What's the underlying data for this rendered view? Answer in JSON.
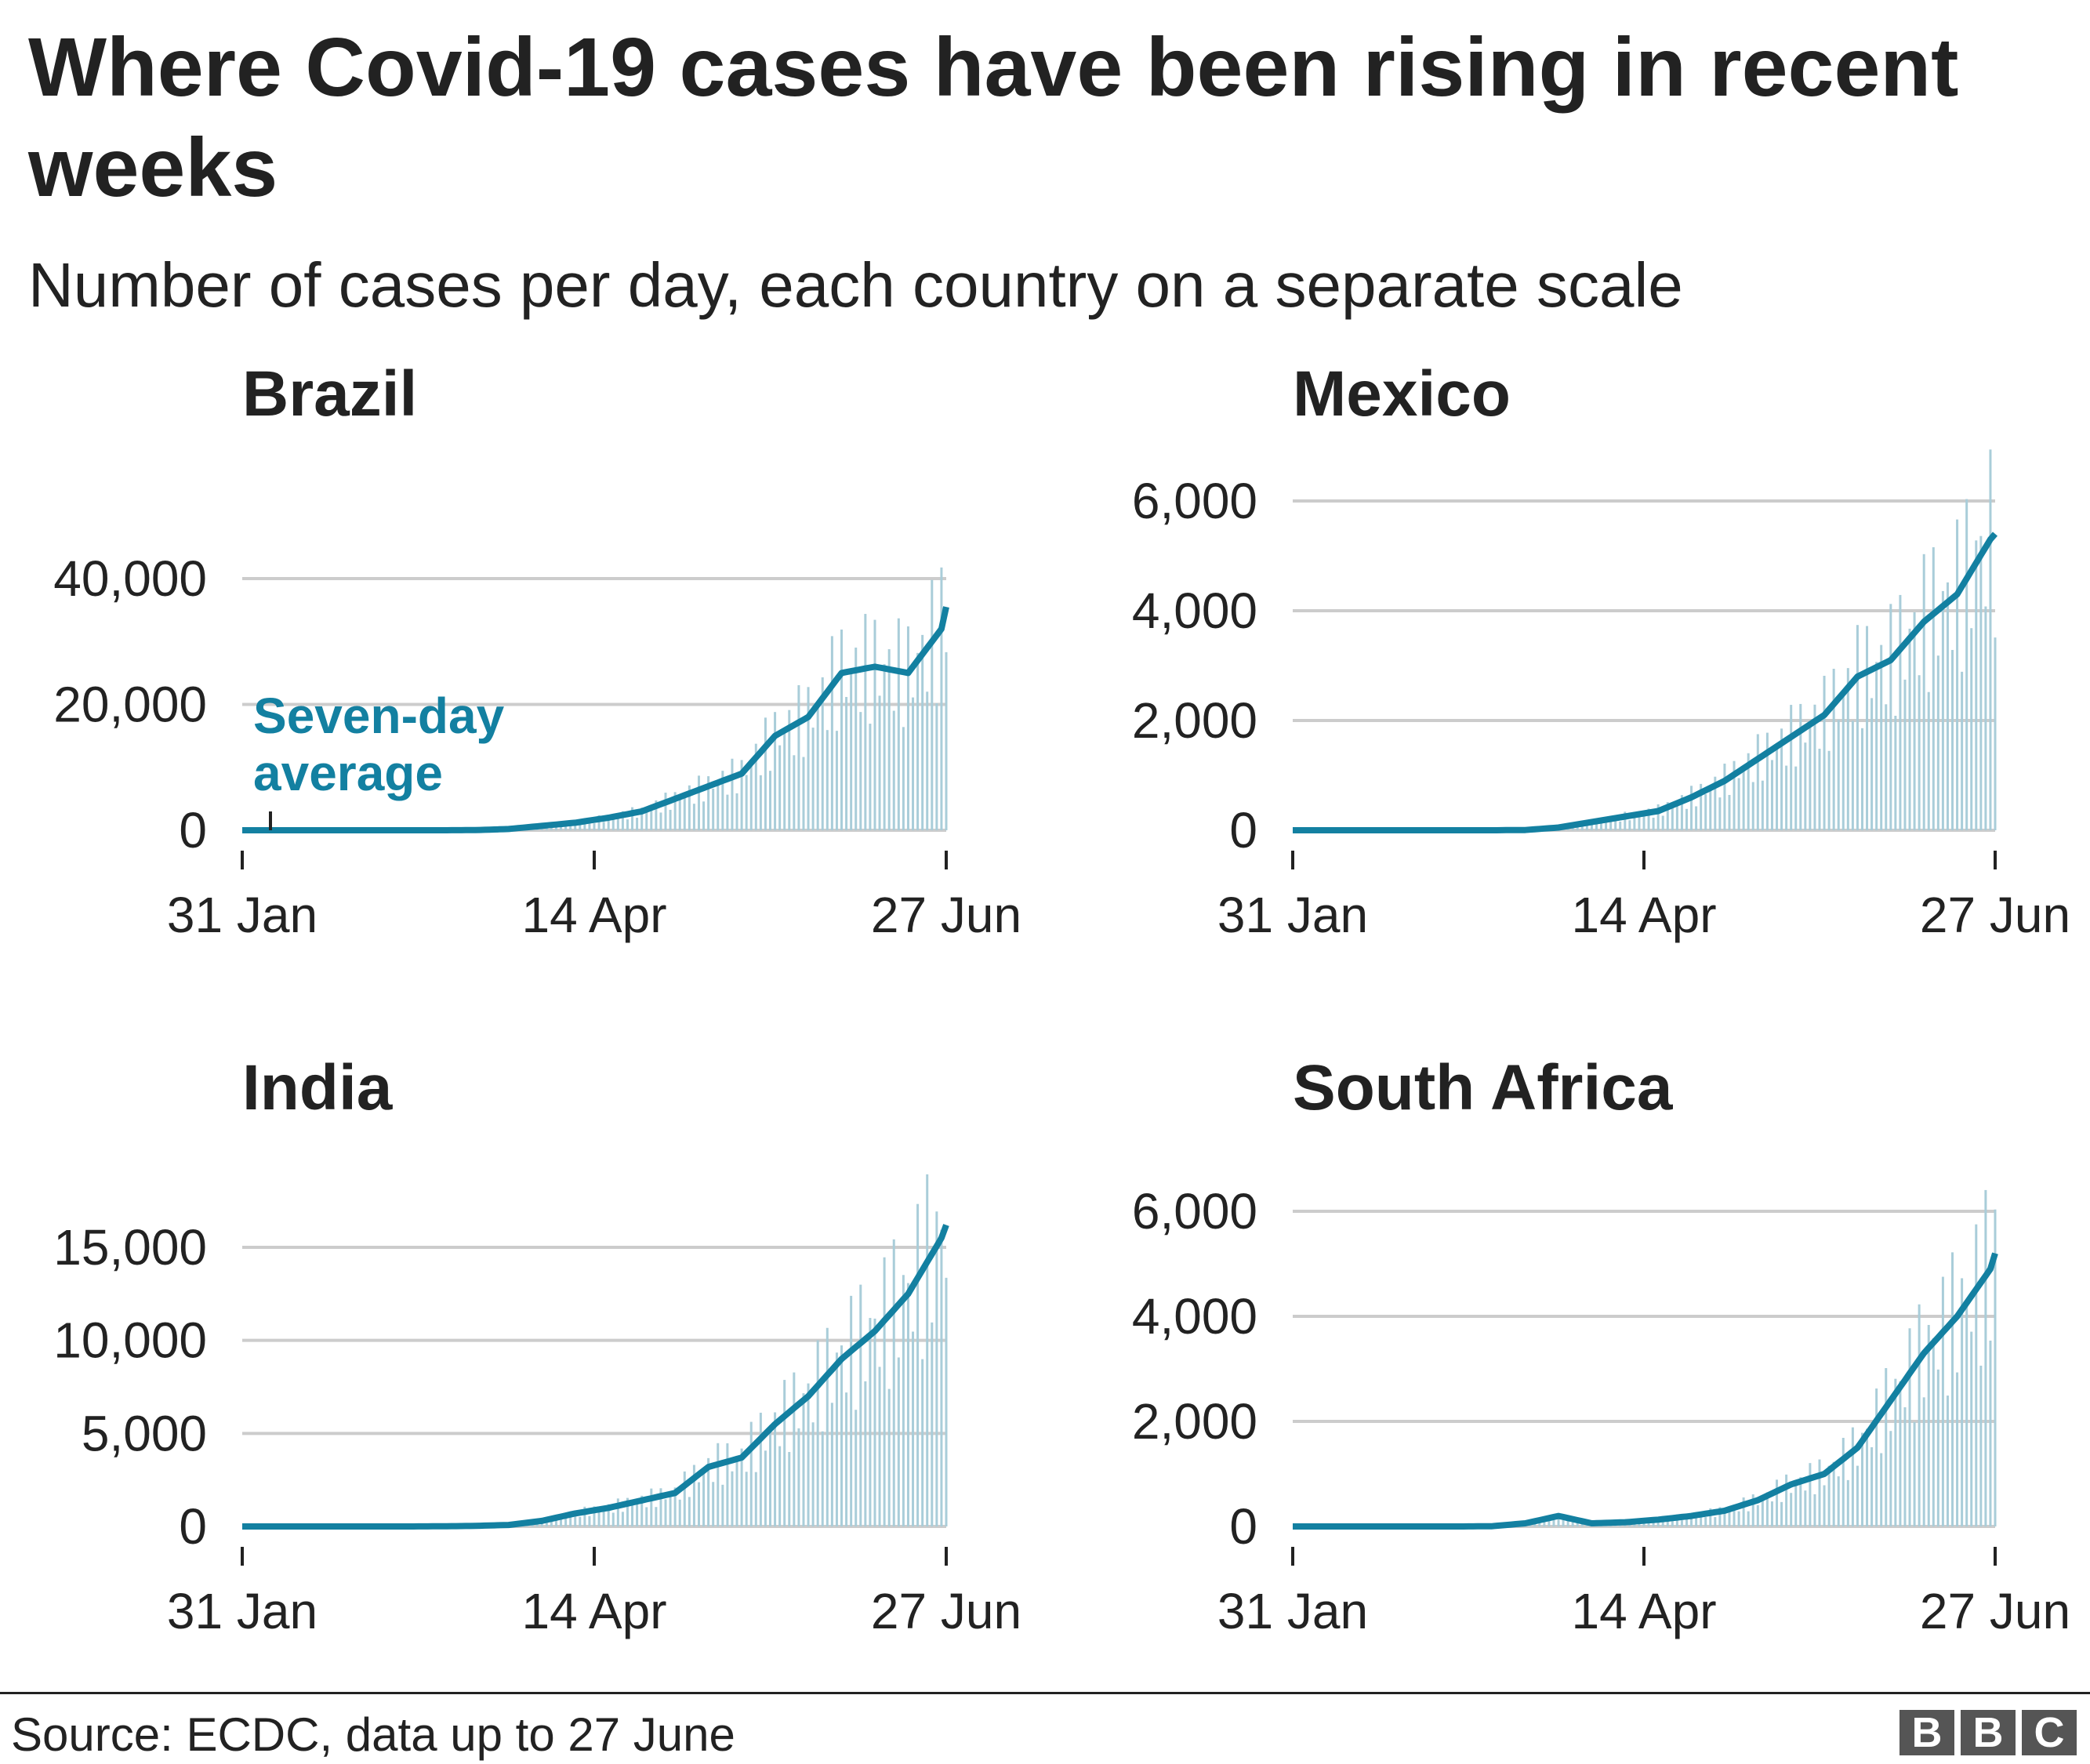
{
  "title": "Where Covid-19 cases have been rising in recent weeks",
  "subtitle": "Number of cases per day, each country on a separate scale",
  "source": "Source: ECDC, data up to 27 June",
  "logo": "BBC",
  "colors": {
    "line": "#1380a1",
    "bars": "#a9cdd9",
    "grid": "#cccccc"
  },
  "annotation": {
    "line1": "Seven-day",
    "line2": "average"
  },
  "chart_data": [
    {
      "type": "bar+line",
      "title": "Brazil",
      "x_ticks": [
        "31 Jan",
        "14 Apr",
        "27 Jun"
      ],
      "y_ticks": [
        0,
        20000,
        40000
      ],
      "y_tick_labels": [
        "0",
        "20,000",
        "40,000"
      ],
      "ylim": [
        0,
        55000
      ],
      "avg_dates": [
        "31 Jan",
        "7 Feb",
        "14 Feb",
        "21 Feb",
        "28 Feb",
        "6 Mar",
        "13 Mar",
        "20 Mar",
        "27 Mar",
        "3 Apr",
        "10 Apr",
        "17 Apr",
        "24 Apr",
        "1 May",
        "8 May",
        "15 May",
        "22 May",
        "29 May",
        "5 Jun",
        "12 Jun",
        "19 Jun",
        "26 Jun",
        "27 Jun"
      ],
      "avg": [
        0,
        0,
        0,
        0,
        0,
        0,
        0,
        30,
        200,
        700,
        1200,
        2000,
        3000,
        5000,
        7000,
        9000,
        15000,
        18000,
        25000,
        26000,
        25000,
        32000,
        35500
      ]
    },
    {
      "type": "bar+line",
      "title": "Mexico",
      "x_ticks": [
        "31 Jan",
        "14 Apr",
        "27 Jun"
      ],
      "y_ticks": [
        0,
        2000,
        4000,
        6000
      ],
      "y_tick_labels": [
        "0",
        "2,000",
        "4,000",
        "6,000"
      ],
      "ylim": [
        0,
        6300
      ],
      "avg_dates": [
        "31 Jan",
        "7 Feb",
        "14 Feb",
        "21 Feb",
        "28 Feb",
        "6 Mar",
        "13 Mar",
        "20 Mar",
        "27 Mar",
        "3 Apr",
        "10 Apr",
        "17 Apr",
        "24 Apr",
        "1 May",
        "8 May",
        "15 May",
        "22 May",
        "29 May",
        "5 Jun",
        "12 Jun",
        "19 Jun",
        "26 Jun",
        "27 Jun"
      ],
      "avg": [
        0,
        0,
        0,
        0,
        0,
        0,
        0,
        5,
        50,
        150,
        250,
        350,
        600,
        900,
        1300,
        1700,
        2100,
        2800,
        3100,
        3800,
        4300,
        5300,
        5400
      ]
    },
    {
      "type": "bar+line",
      "title": "India",
      "x_ticks": [
        "31 Jan",
        "14 Apr",
        "27 Jun"
      ],
      "y_ticks": [
        0,
        5000,
        10000,
        15000
      ],
      "y_tick_labels": [
        "0",
        "5,000",
        "10,000",
        "15,000"
      ],
      "ylim": [
        0,
        19000
      ],
      "avg_dates": [
        "31 Jan",
        "7 Feb",
        "14 Feb",
        "21 Feb",
        "28 Feb",
        "6 Mar",
        "13 Mar",
        "20 Mar",
        "27 Mar",
        "3 Apr",
        "10 Apr",
        "17 Apr",
        "24 Apr",
        "1 May",
        "8 May",
        "15 May",
        "22 May",
        "29 May",
        "5 Jun",
        "12 Jun",
        "19 Jun",
        "26 Jun",
        "27 Jun"
      ],
      "avg": [
        0,
        0,
        0,
        0,
        0,
        0,
        10,
        30,
        80,
        300,
        700,
        1000,
        1400,
        1800,
        3200,
        3700,
        5500,
        7000,
        9000,
        10500,
        12500,
        15500,
        16200
      ]
    },
    {
      "type": "bar+line",
      "title": "South Africa",
      "x_ticks": [
        "31 Jan",
        "14 Apr",
        "27 Jun"
      ],
      "y_ticks": [
        0,
        2000,
        4000,
        6000
      ],
      "y_tick_labels": [
        "0",
        "2,000",
        "4,000",
        "6,000"
      ],
      "ylim": [
        0,
        6600
      ],
      "avg_dates": [
        "31 Jan",
        "7 Feb",
        "14 Feb",
        "21 Feb",
        "28 Feb",
        "6 Mar",
        "13 Mar",
        "20 Mar",
        "27 Mar",
        "3 Apr",
        "10 Apr",
        "17 Apr",
        "24 Apr",
        "1 May",
        "8 May",
        "15 May",
        "22 May",
        "29 May",
        "5 Jun",
        "12 Jun",
        "19 Jun",
        "26 Jun",
        "27 Jun"
      ],
      "avg": [
        0,
        0,
        0,
        0,
        0,
        0,
        5,
        60,
        200,
        60,
        80,
        130,
        200,
        300,
        500,
        800,
        1000,
        1500,
        2400,
        3300,
        4000,
        4900,
        5200
      ]
    }
  ]
}
